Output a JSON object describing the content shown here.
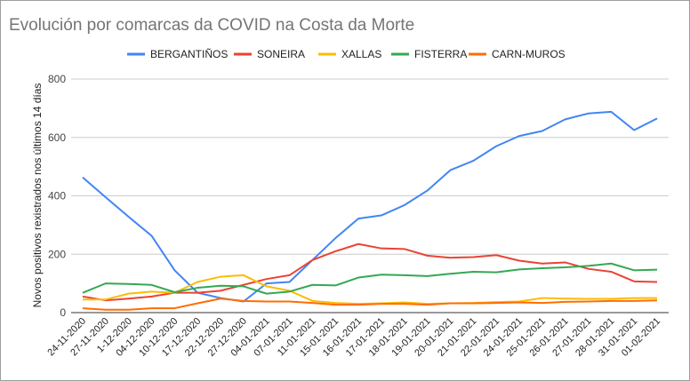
{
  "chart_data": {
    "type": "line",
    "title": "Evolución por comarcas da COVID na Costa da Morte",
    "xlabel": "",
    "ylabel": "Novos positivos rexistrados nos últimos 14 días",
    "ylim": [
      0,
      800
    ],
    "yticks": [
      "0",
      "200",
      "400",
      "600",
      "800"
    ],
    "grid": true,
    "legend_position": "top",
    "categories": [
      "24-11-2020",
      "27-11-2020",
      "1-12-2020",
      "04-12-2020",
      "10-12-2020",
      "17-12-2020",
      "22-12-2020",
      "27-12-2020",
      "04-01-2021",
      "07-01-2021",
      "11-01-2021",
      "15-01-2021",
      "16-01-2021",
      "17-01-2021",
      "18-01-2021",
      "19-01-2021",
      "20-01-2021",
      "21-01-2021",
      "22-01-2021",
      "24-01-2021",
      "25-01-2021",
      "26-01-2021",
      "27-01-2021",
      "28-01-2021",
      "31-01-2021",
      "01-02-2021"
    ],
    "series": [
      {
        "name": "BERGANTIÑOS",
        "color": "#4285f4",
        "values": [
          463,
          395,
          328,
          263,
          145,
          68,
          50,
          38,
          100,
          105,
          180,
          255,
          322,
          333,
          368,
          418,
          488,
          520,
          570,
          605,
          622,
          662,
          682,
          688,
          625,
          665
        ]
      },
      {
        "name": "SONEIRA",
        "color": "#ea4335",
        "values": [
          55,
          42,
          48,
          55,
          68,
          68,
          75,
          95,
          115,
          128,
          180,
          210,
          235,
          220,
          218,
          195,
          188,
          190,
          197,
          178,
          168,
          172,
          150,
          140,
          107,
          105
        ]
      },
      {
        "name": "XALLAS",
        "color": "#fbbc04",
        "values": [
          45,
          45,
          65,
          72,
          68,
          105,
          123,
          128,
          90,
          75,
          40,
          33,
          30,
          32,
          35,
          30,
          32,
          33,
          36,
          38,
          50,
          48,
          47,
          47,
          50,
          50
        ]
      },
      {
        "name": "FISTERRA",
        "color": "#34a853",
        "values": [
          68,
          100,
          98,
          95,
          70,
          85,
          92,
          90,
          65,
          72,
          95,
          93,
          120,
          130,
          128,
          125,
          133,
          140,
          138,
          148,
          152,
          155,
          160,
          168,
          145,
          147
        ]
      },
      {
        "name": "CARN-MUROS",
        "color": "#ff6d01",
        "values": [
          15,
          10,
          10,
          15,
          15,
          32,
          48,
          40,
          38,
          38,
          33,
          27,
          27,
          30,
          30,
          27,
          32,
          32,
          33,
          35,
          33,
          37,
          38,
          40,
          40,
          42
        ]
      }
    ]
  }
}
